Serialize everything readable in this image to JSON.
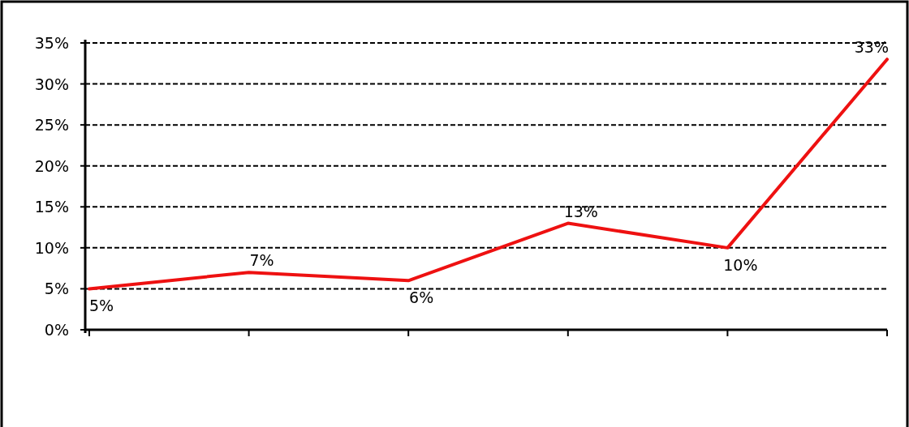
{
  "chart_data": {
    "type": "line",
    "categories": [
      null,
      null,
      null,
      null,
      null,
      null
    ],
    "series": [
      {
        "color": "#ee1111",
        "values": [
          5,
          7,
          6,
          13,
          10,
          33
        ],
        "value_labels": [
          "5%",
          "7%",
          "6%",
          "13%",
          "10%",
          "33%"
        ]
      }
    ],
    "ylim": [
      0,
      35
    ],
    "yticks": [
      {
        "value": 0,
        "label": "0%"
      },
      {
        "value": 5,
        "label": "5%"
      },
      {
        "value": 10,
        "label": "10%"
      },
      {
        "value": 15,
        "label": "15%"
      },
      {
        "value": 20,
        "label": "20%"
      },
      {
        "value": 25,
        "label": "25%"
      },
      {
        "value": 30,
        "label": "30%"
      },
      {
        "value": 35,
        "label": "35%"
      }
    ],
    "grid": "y",
    "marker": "none",
    "line_style": "solid"
  }
}
